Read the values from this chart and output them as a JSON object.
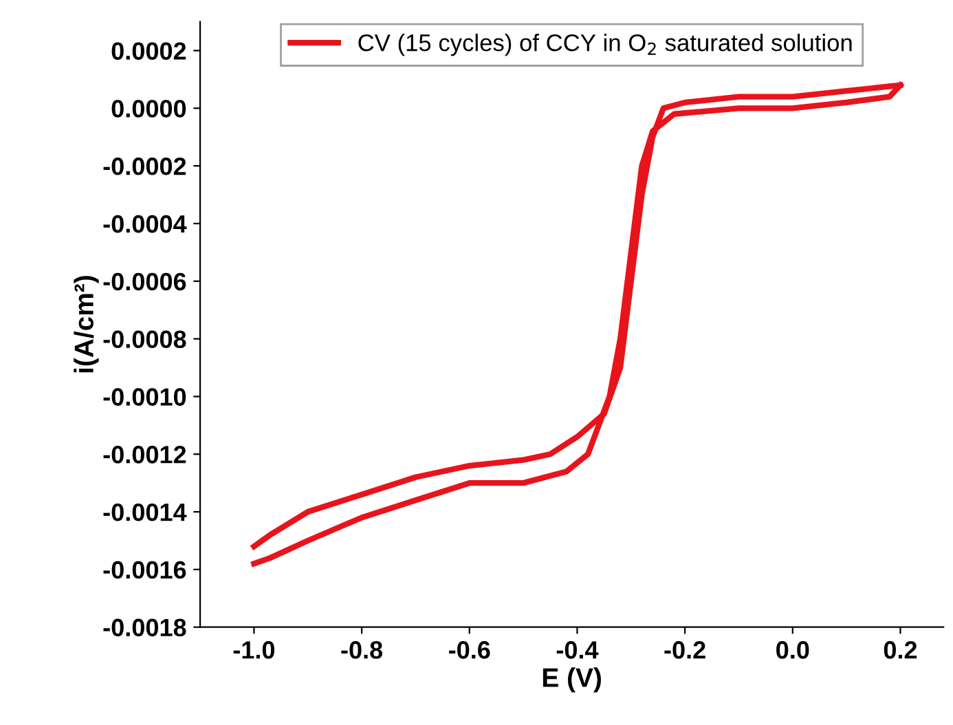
{
  "chart_data": {
    "type": "line",
    "xlabel": "E (V)",
    "ylabel": "i(A/cm²)",
    "xlim": [
      -1.1,
      0.28
    ],
    "ylim": [
      -0.0018,
      0.0003
    ],
    "xticks": [
      {
        "value": -1.0,
        "label": "-1.0"
      },
      {
        "value": -0.8,
        "label": "-0.8"
      },
      {
        "value": -0.6,
        "label": "-0.6"
      },
      {
        "value": -0.4,
        "label": "-0.4"
      },
      {
        "value": -0.2,
        "label": "-0.2"
      },
      {
        "value": 0.0,
        "label": "0.0"
      },
      {
        "value": 0.2,
        "label": "0.2"
      }
    ],
    "yticks": [
      {
        "value": -0.0018,
        "label": "-0.0018"
      },
      {
        "value": -0.0016,
        "label": "-0.0016"
      },
      {
        "value": -0.0014,
        "label": "-0.0014"
      },
      {
        "value": -0.0012,
        "label": "-0.0012"
      },
      {
        "value": -0.001,
        "label": "-0.0010"
      },
      {
        "value": -0.0008,
        "label": "-0.0008"
      },
      {
        "value": -0.0006,
        "label": "-0.0006"
      },
      {
        "value": -0.0004,
        "label": "-0.0004"
      },
      {
        "value": -0.0002,
        "label": "-0.0002"
      },
      {
        "value": 0.0,
        "label": "0.0000"
      },
      {
        "value": 0.0002,
        "label": "0.0002"
      }
    ],
    "grid": false,
    "legend": "top",
    "marker": "none",
    "line_style": "solid",
    "series": [
      {
        "name": "CV (15 cycles) of CCY in O$_{2}$ saturated solution",
        "color": "#e8141c",
        "x": [
          -1.0,
          -0.97,
          -0.9,
          -0.8,
          -0.7,
          -0.6,
          -0.5,
          -0.45,
          -0.4,
          -0.35,
          -0.32,
          -0.3,
          -0.28,
          -0.26,
          -0.24,
          -0.2,
          -0.1,
          0.0,
          0.1,
          0.2
        ],
        "values": [
          -0.00152,
          -0.00148,
          -0.0014,
          -0.00134,
          -0.00128,
          -0.00124,
          -0.00122,
          -0.0012,
          -0.00114,
          -0.00106,
          -0.0009,
          -0.0006,
          -0.0003,
          -0.0001,
          0.0,
          2e-05,
          4e-05,
          4e-05,
          6e-05,
          8e-05
        ]
      },
      {
        "color": "#e8141c",
        "x": [
          -1.0,
          -0.97,
          -0.9,
          -0.8,
          -0.7,
          -0.6,
          -0.5,
          -0.42,
          -0.38,
          -0.34,
          -0.32,
          -0.3,
          -0.28,
          -0.26,
          -0.22,
          -0.1,
          0.0,
          0.1,
          0.18,
          0.2
        ],
        "values": [
          -0.00158,
          -0.00156,
          -0.0015,
          -0.00142,
          -0.00136,
          -0.0013,
          -0.0013,
          -0.00126,
          -0.0012,
          -0.001,
          -0.0008,
          -0.0005,
          -0.0002,
          -8e-05,
          -2e-05,
          0.0,
          0.0,
          2e-05,
          4e-05,
          8e-05
        ]
      }
    ]
  }
}
